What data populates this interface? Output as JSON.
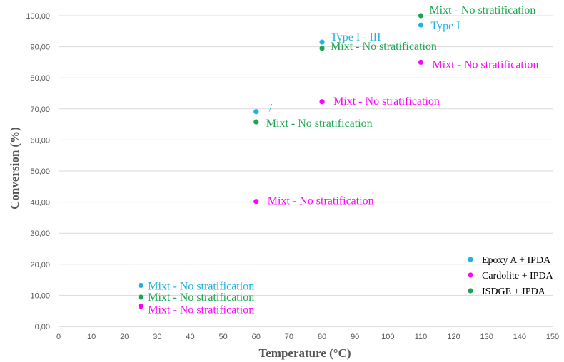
{
  "chart_data": {
    "type": "scatter",
    "xlabel": "Temperature (°C)",
    "ylabel": "Conversion (%)",
    "xlim": [
      0,
      150
    ],
    "ylim": [
      0,
      100
    ],
    "x_ticks": [
      0,
      10,
      20,
      30,
      40,
      50,
      60,
      70,
      80,
      90,
      100,
      110,
      120,
      130,
      140,
      150
    ],
    "y_tick_labels": [
      "0,00",
      "10,00",
      "20,00",
      "30,00",
      "40,00",
      "50,00",
      "60,00",
      "70,00",
      "80,00",
      "90,00",
      "100,00"
    ],
    "y_ticks": [
      0,
      10,
      20,
      30,
      40,
      50,
      60,
      70,
      80,
      90,
      100
    ],
    "grid": "horizontal",
    "legend_position": "bottom-right",
    "series": [
      {
        "name": "Epoxy A + IPDA",
        "color": "#1fb2e3",
        "points": [
          {
            "x": 25,
            "y": 13.2,
            "label": "Mixt - No stratification"
          },
          {
            "x": 60,
            "y": 69.1,
            "label": "/"
          },
          {
            "x": 80,
            "y": 91.5,
            "label": "Type I - III"
          },
          {
            "x": 110,
            "y": 97.0,
            "label": "Type I"
          }
        ]
      },
      {
        "name": "Cardolite + IPDA",
        "color": "#ff00ff",
        "points": [
          {
            "x": 25,
            "y": 6.5,
            "label": "Mixt - No stratification"
          },
          {
            "x": 60,
            "y": 40.2,
            "label": "Mixt - No stratification"
          },
          {
            "x": 80,
            "y": 72.3,
            "label": "Mixt - No stratification"
          },
          {
            "x": 110,
            "y": 85.0,
            "label": "Mixt - No stratification"
          }
        ]
      },
      {
        "name": "ISDGE + IPDA",
        "color": "#1aa650",
        "points": [
          {
            "x": 25,
            "y": 9.4,
            "label": "Mixt - No stratification"
          },
          {
            "x": 60,
            "y": 65.8,
            "label": "Mixt - No stratification"
          },
          {
            "x": 80,
            "y": 89.5,
            "label": "Mixt - No stratification"
          },
          {
            "x": 110,
            "y": 100.0,
            "label": "Mixt - No stratification"
          }
        ]
      }
    ]
  }
}
